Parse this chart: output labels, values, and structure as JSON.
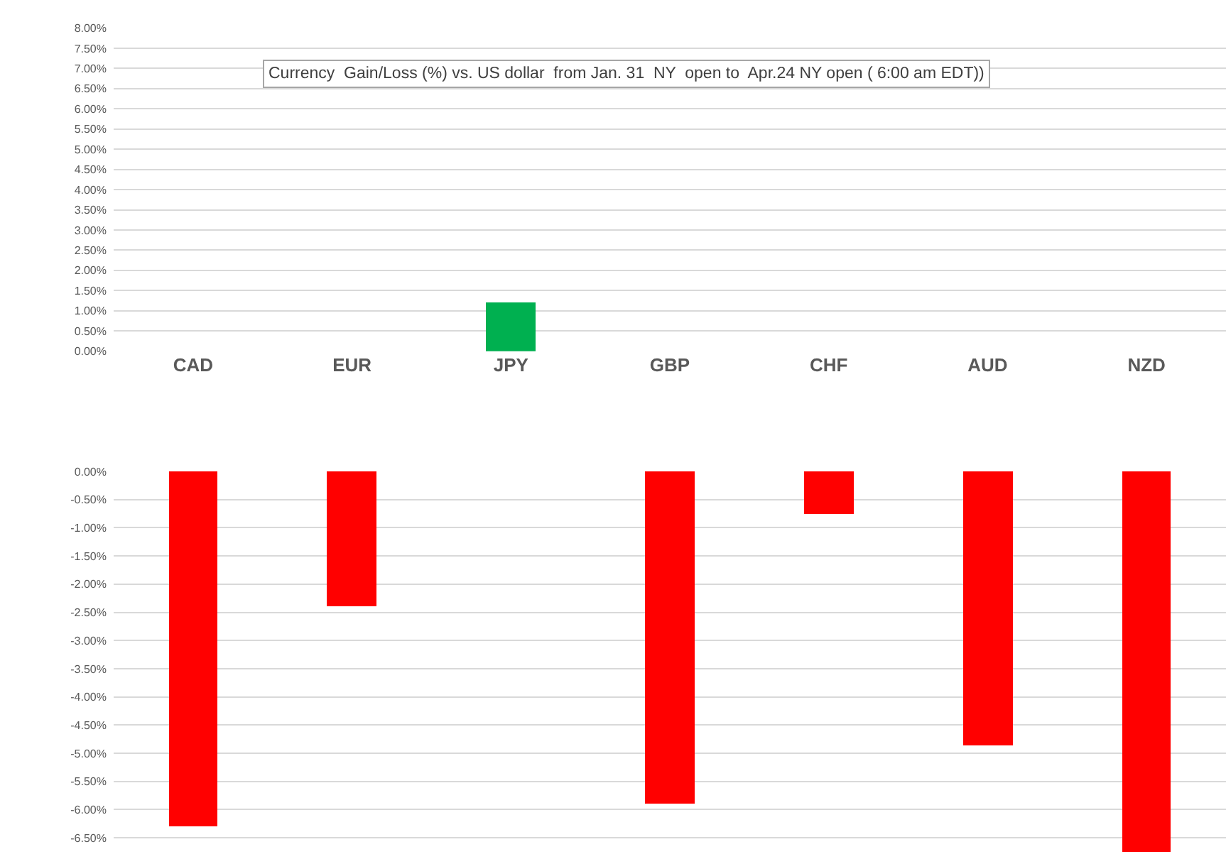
{
  "chart_data": [
    {
      "type": "bar",
      "title": "Currency  Gain/Loss (%) vs. US dollar  from Jan. 31  NY  open to  Apr.24 NY open ( 6:00 am EDT))",
      "categories": [
        "CAD",
        "EUR",
        "JPY",
        "GBP",
        "CHF",
        "AUD",
        "NZD"
      ],
      "series": [
        {
          "color": "#00b050",
          "values": [
            null,
            null,
            1.2,
            null,
            null,
            null,
            null
          ]
        }
      ],
      "ylim": [
        0,
        8
      ],
      "yticks": [
        {
          "value": 0,
          "label": "0.00%"
        },
        {
          "value": 0.5,
          "label": "0.50%"
        },
        {
          "value": 1,
          "label": "1.00%"
        },
        {
          "value": 1.5,
          "label": "1.50%"
        },
        {
          "value": 2,
          "label": "2.00%"
        },
        {
          "value": 2.5,
          "label": "2.50%"
        },
        {
          "value": 3,
          "label": "3.00%"
        },
        {
          "value": 3.5,
          "label": "3.50%"
        },
        {
          "value": 4,
          "label": "4.00%"
        },
        {
          "value": 4.5,
          "label": "4.50%"
        },
        {
          "value": 5,
          "label": "5.00%"
        },
        {
          "value": 5.5,
          "label": "5.50%"
        },
        {
          "value": 6,
          "label": "6.00%"
        },
        {
          "value": 6.5,
          "label": "6.50%"
        },
        {
          "value": 7,
          "label": "7.00%"
        },
        {
          "value": 7.5,
          "label": "7.50%"
        },
        {
          "value": 8,
          "label": "8.00%"
        }
      ],
      "grid": "y"
    },
    {
      "type": "bar",
      "categories": [
        null,
        null,
        null,
        null,
        null,
        null,
        null
      ],
      "series": [
        {
          "color": "#ff0000",
          "values": [
            -6.3,
            -2.4,
            null,
            -5.9,
            -0.75,
            -4.85,
            -6.75
          ]
        }
      ],
      "ylim": [
        -6.75,
        0
      ],
      "yticks": [
        {
          "value": 0,
          "label": "0.00%"
        },
        {
          "value": -0.5,
          "label": "-0.50%"
        },
        {
          "value": -1,
          "label": "-1.00%"
        },
        {
          "value": -1.5,
          "label": "-1.50%"
        },
        {
          "value": -2,
          "label": "-2.00%"
        },
        {
          "value": -2.5,
          "label": "-2.50%"
        },
        {
          "value": -3,
          "label": "-3.00%"
        },
        {
          "value": -3.5,
          "label": "-3.50%"
        },
        {
          "value": -4,
          "label": "-4.00%"
        },
        {
          "value": -4.5,
          "label": "-4.50%"
        },
        {
          "value": -5,
          "label": "-5.00%"
        },
        {
          "value": -5.5,
          "label": "-5.50%"
        },
        {
          "value": -6,
          "label": "-6.00%"
        },
        {
          "value": -6.5,
          "label": "-6.50%"
        }
      ],
      "grid": "y",
      "tick_labels": "y"
    }
  ]
}
